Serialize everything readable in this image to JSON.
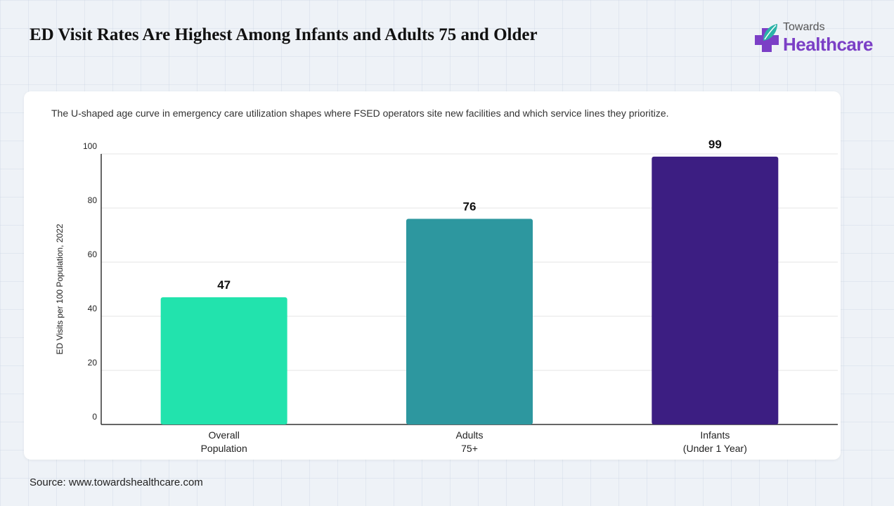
{
  "title": "ED Visit Rates Are Highest Among Infants and Adults 75 and Older",
  "subtitle": "The U-shaped age curve in emergency care utilization shapes where FSED operators site new facilities and which service lines they prioritize.",
  "source": "Source: www.towardshealthcare.com",
  "logo": {
    "line1": "Towards",
    "line2": "Healthcare",
    "icon": "medical-cross-leaf-icon",
    "colors": {
      "purple": "#7b3fc6",
      "teal": "#2bb3a8"
    }
  },
  "chart_data": {
    "type": "bar",
    "categories": [
      [
        "Overall",
        "Population"
      ],
      [
        "Adults",
        "75+"
      ],
      [
        "Infants",
        "(Under 1 Year)"
      ]
    ],
    "values": [
      47,
      76,
      99
    ],
    "data_labels": [
      "47",
      "76",
      "99"
    ],
    "colors": [
      "#22e3ad",
      "#2d979f",
      "#3c1e82"
    ],
    "ylabel": "ED Visits per 100 Population, 2022",
    "ylim": [
      0,
      100
    ],
    "yticks": [
      0,
      20,
      40,
      60,
      80,
      100
    ],
    "grid": true
  }
}
